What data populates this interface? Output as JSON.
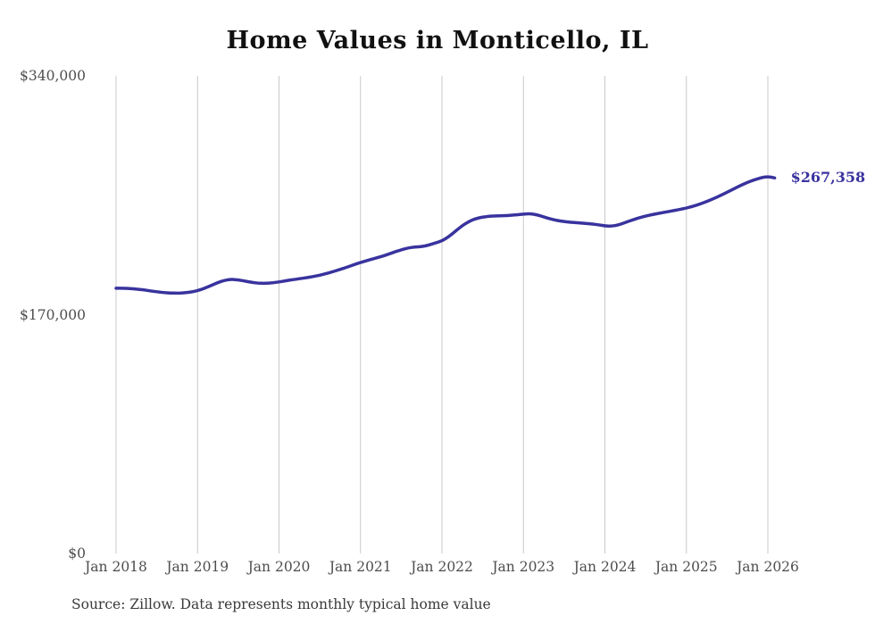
{
  "page": {
    "title": "Home Values in Monticello, IL",
    "source_note": "Source: Zillow. Data represents monthly typical home value"
  },
  "chart_data": {
    "type": "line",
    "title": "Home Values in Monticello, IL",
    "xlabel": "",
    "ylabel": "",
    "ylim": [
      0,
      340000
    ],
    "yticks": {
      "values": [
        0,
        170000,
        340000
      ],
      "labels": [
        "$0",
        "$170,000",
        "$340,000"
      ]
    },
    "xticks": [
      "Jan 2018",
      "Jan 2019",
      "Jan 2020",
      "Jan 2021",
      "Jan 2022",
      "Jan 2023",
      "Jan 2024",
      "Jan 2025",
      "Jan 2026"
    ],
    "grid": "vertical-only",
    "legend": "none",
    "end_point_label": "$267,358",
    "final_value": 267358,
    "colors": {
      "line": "#39339e",
      "grid": "#c9c9c9",
      "axis_text": "#4d4d4d",
      "title": "#111111",
      "source_text": "#3a3a3a",
      "background": "#ffffff"
    },
    "series": [
      {
        "name": "Typical home value (USD)",
        "start_month": "Jan 2018",
        "frequency": "monthly",
        "values": [
          188800,
          188900,
          188600,
          188200,
          187700,
          187000,
          186300,
          185700,
          185400,
          185300,
          185500,
          186100,
          187100,
          188700,
          190800,
          192900,
          194500,
          195200,
          194800,
          193900,
          193000,
          192400,
          192300,
          192700,
          193300,
          194100,
          194900,
          195600,
          196300,
          197100,
          198100,
          199300,
          200700,
          202200,
          203800,
          205500,
          207200,
          208600,
          209900,
          211300,
          212900,
          214600,
          216200,
          217500,
          218200,
          218400,
          219500,
          221000,
          222500,
          225500,
          229500,
          233400,
          236400,
          238400,
          239500,
          240100,
          240300,
          240400,
          240700,
          241100,
          241600,
          241900,
          241100,
          239600,
          238100,
          237000,
          236300,
          235800,
          235400,
          235000,
          234600,
          234000,
          233200,
          233000,
          233900,
          235600,
          237300,
          238900,
          240200,
          241300,
          242200,
          243100,
          244000,
          244900,
          245900,
          247200,
          248800,
          250600,
          252600,
          254800,
          257200,
          259600,
          262000,
          264200,
          266000,
          267500,
          268400,
          267358
        ]
      }
    ]
  }
}
